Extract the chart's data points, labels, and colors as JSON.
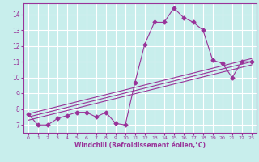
{
  "xlabel": "Windchill (Refroidissement éolien,°C)",
  "bg_color": "#c8eeec",
  "grid_color": "#ffffff",
  "line_color": "#993399",
  "xlim": [
    -0.5,
    23.5
  ],
  "ylim": [
    6.5,
    14.7
  ],
  "xticks": [
    0,
    1,
    2,
    3,
    4,
    5,
    6,
    7,
    8,
    9,
    10,
    11,
    12,
    13,
    14,
    15,
    16,
    17,
    18,
    19,
    20,
    21,
    22,
    23
  ],
  "yticks": [
    7,
    8,
    9,
    10,
    11,
    12,
    13,
    14
  ],
  "line1_x": [
    0,
    1,
    2,
    3,
    4,
    5,
    6,
    7,
    8,
    9,
    10,
    11,
    12,
    13,
    14,
    15,
    16,
    17,
    18,
    19,
    20,
    21,
    22,
    23
  ],
  "line1_y": [
    7.7,
    7.0,
    7.0,
    7.4,
    7.6,
    7.8,
    7.8,
    7.5,
    7.8,
    7.1,
    7.0,
    9.7,
    12.1,
    13.5,
    13.5,
    14.4,
    13.8,
    13.5,
    13.0,
    11.1,
    10.9,
    10.0,
    11.0,
    11.0
  ],
  "line2_x": [
    0,
    23
  ],
  "line2_y": [
    7.3,
    10.8
  ],
  "line3_x": [
    0,
    23
  ],
  "line3_y": [
    7.5,
    11.0
  ],
  "line4_x": [
    0,
    23
  ],
  "line4_y": [
    7.7,
    11.2
  ],
  "markersize": 2.5
}
